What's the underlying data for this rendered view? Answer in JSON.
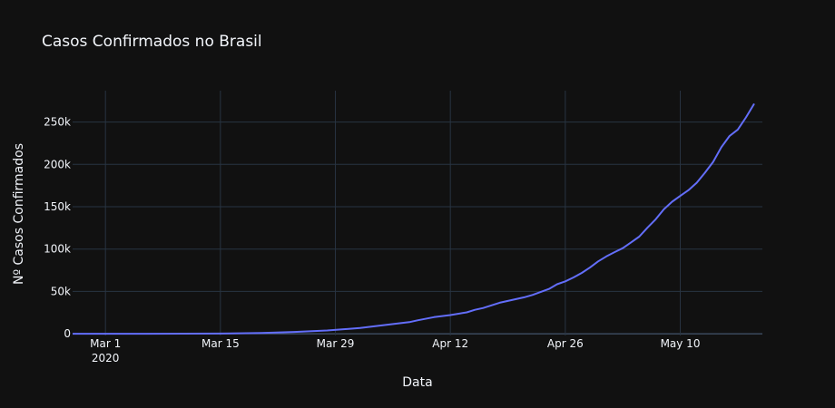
{
  "chart_data": {
    "type": "line",
    "title": "Casos Confirmados no Brasil",
    "xlabel": "Data",
    "ylabel": "Nº Casos Confirmados",
    "x_start": "2020-02-26",
    "x_end": "2020-05-20",
    "xlim": [
      "2020-02-26",
      "2020-05-20"
    ],
    "ylim": [
      -2000,
      287000
    ],
    "grid": true,
    "x_ticks": [
      {
        "date": "2020-03-01",
        "label": "Mar 1",
        "sublabel": "2020"
      },
      {
        "date": "2020-03-15",
        "label": "Mar 15",
        "sublabel": ""
      },
      {
        "date": "2020-03-29",
        "label": "Mar 29",
        "sublabel": ""
      },
      {
        "date": "2020-04-12",
        "label": "Apr 12",
        "sublabel": ""
      },
      {
        "date": "2020-04-26",
        "label": "Apr 26",
        "sublabel": ""
      },
      {
        "date": "2020-05-10",
        "label": "May 10",
        "sublabel": ""
      }
    ],
    "y_ticks": [
      {
        "value": 0,
        "label": "0"
      },
      {
        "value": 50000,
        "label": "50k"
      },
      {
        "value": 100000,
        "label": "100k"
      },
      {
        "value": 150000,
        "label": "150k"
      },
      {
        "value": 200000,
        "label": "200k"
      },
      {
        "value": 250000,
        "label": "250k"
      }
    ],
    "series": [
      {
        "color": "#636efa",
        "points": [
          [
            "2020-02-26",
            1
          ],
          [
            "2020-03-06",
            13
          ],
          [
            "2020-03-15",
            200
          ],
          [
            "2020-03-20",
            900
          ],
          [
            "2020-03-24",
            2200
          ],
          [
            "2020-03-28",
            3900
          ],
          [
            "2020-04-01",
            6800
          ],
          [
            "2020-04-04",
            10300
          ],
          [
            "2020-04-07",
            13700
          ],
          [
            "2020-04-08",
            15900
          ],
          [
            "2020-04-10",
            19600
          ],
          [
            "2020-04-12",
            22100
          ],
          [
            "2020-04-14",
            25300
          ],
          [
            "2020-04-15",
            28300
          ],
          [
            "2020-04-16",
            30400
          ],
          [
            "2020-04-18",
            36600
          ],
          [
            "2020-04-21",
            43100
          ],
          [
            "2020-04-22",
            45800
          ],
          [
            "2020-04-24",
            52900
          ],
          [
            "2020-04-25",
            58500
          ],
          [
            "2020-04-26",
            61900
          ],
          [
            "2020-04-27",
            66500
          ],
          [
            "2020-04-28",
            71900
          ],
          [
            "2020-04-29",
            78200
          ],
          [
            "2020-04-30",
            85400
          ],
          [
            "2020-05-01",
            91300
          ],
          [
            "2020-05-02",
            96400
          ],
          [
            "2020-05-03",
            101100
          ],
          [
            "2020-05-04",
            107800
          ],
          [
            "2020-05-05",
            114700
          ],
          [
            "2020-05-06",
            125200
          ],
          [
            "2020-05-07",
            135100
          ],
          [
            "2020-05-08",
            146900
          ],
          [
            "2020-05-09",
            155900
          ],
          [
            "2020-05-10",
            162700
          ],
          [
            "2020-05-11",
            169600
          ],
          [
            "2020-05-12",
            178200
          ],
          [
            "2020-05-13",
            190100
          ],
          [
            "2020-05-14",
            202900
          ],
          [
            "2020-05-15",
            220300
          ],
          [
            "2020-05-16",
            233500
          ],
          [
            "2020-05-17",
            241100
          ],
          [
            "2020-05-18",
            255400
          ],
          [
            "2020-05-19",
            271600
          ]
        ]
      }
    ]
  }
}
